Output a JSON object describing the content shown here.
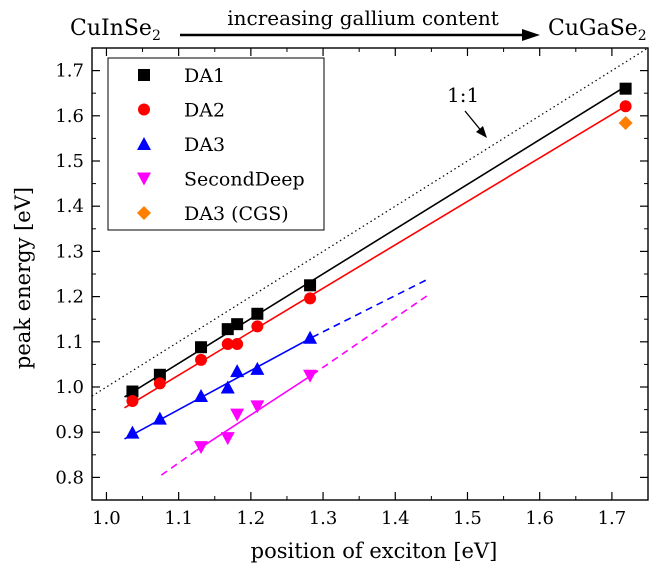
{
  "chart_data": {
    "type": "scatter",
    "xlabel": "position of exciton [eV]",
    "ylabel": "peak energy [eV]",
    "xlim": [
      0.98,
      1.75
    ],
    "ylim": [
      0.75,
      1.75
    ],
    "xticks": [
      "1.0",
      "1.1",
      "1.2",
      "1.3",
      "1.4",
      "1.5",
      "1.6",
      "1.7"
    ],
    "yticks": [
      "0.8",
      "0.9",
      "1.0",
      "1.1",
      "1.2",
      "1.3",
      "1.4",
      "1.5",
      "1.6",
      "1.7"
    ],
    "grid": false,
    "legend_position": "top-left",
    "top_annotation": {
      "left": "CuInSe",
      "left_sub": "2",
      "middle": "increasing gallium content",
      "right": "CuGaSe",
      "right_sub": "2"
    },
    "reference_line": {
      "label": "1:1",
      "style": "dotted",
      "color": "#000000"
    },
    "series": [
      {
        "name": "DA1",
        "marker": "square",
        "color": "#000000",
        "x": [
          1.036,
          1.074,
          1.131,
          1.168,
          1.181,
          1.209,
          1.282,
          1.719
        ],
        "y": [
          0.99,
          1.027,
          1.088,
          1.128,
          1.139,
          1.162,
          1.225,
          1.66
        ],
        "fit": {
          "x": [
            1.025,
            1.725
          ],
          "y": [
            0.978,
            1.671
          ],
          "style": "solid"
        }
      },
      {
        "name": "DA2",
        "marker": "circle",
        "color": "#ff0000",
        "x": [
          1.036,
          1.074,
          1.131,
          1.168,
          1.181,
          1.209,
          1.282,
          1.719
        ],
        "y": [
          0.969,
          1.008,
          1.06,
          1.095,
          1.095,
          1.134,
          1.196,
          1.621
        ],
        "fit": {
          "x": [
            1.025,
            1.725
          ],
          "y": [
            0.954,
            1.627
          ],
          "style": "solid"
        }
      },
      {
        "name": "DA3",
        "marker": "triangle-up",
        "color": "#0000ff",
        "x": [
          1.036,
          1.074,
          1.131,
          1.168,
          1.181,
          1.209,
          1.282
        ],
        "y": [
          0.899,
          0.93,
          0.98,
          0.999,
          1.035,
          1.04,
          1.109
        ],
        "fit": {
          "x": [
            1.025,
            1.285
          ],
          "y": [
            0.885,
            1.11
          ],
          "style": "solid"
        },
        "extrapolation": {
          "x": [
            1.285,
            1.447
          ],
          "y": [
            1.11,
            1.24
          ],
          "style": "dashed"
        }
      },
      {
        "name": "SecondDeep",
        "marker": "triangle-down",
        "color": "#ff00ff",
        "x": [
          1.131,
          1.168,
          1.181,
          1.209,
          1.282
        ],
        "y": [
          0.867,
          0.887,
          0.939,
          0.957,
          1.025
        ],
        "fit": {
          "x": [
            1.125,
            1.285
          ],
          "y": [
            0.86,
            1.027
          ],
          "style": "solid"
        },
        "extrapolation": [
          {
            "x": [
              1.076,
              1.125
            ],
            "y": [
              0.805,
              0.86
            ],
            "style": "dashed"
          },
          {
            "x": [
              1.285,
              1.447
            ],
            "y": [
              1.027,
              1.205
            ],
            "style": "dashed"
          }
        ]
      },
      {
        "name": "DA3 (CGS)",
        "marker": "diamond",
        "color": "#ff8000",
        "x": [
          1.719
        ],
        "y": [
          1.584
        ]
      }
    ]
  }
}
